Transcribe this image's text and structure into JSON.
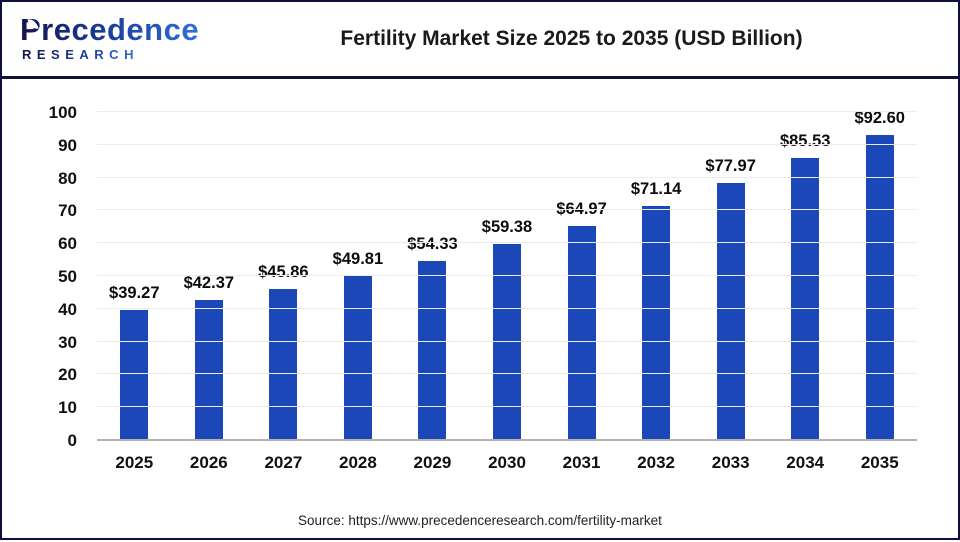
{
  "header": {
    "logo": {
      "name": "Precedence",
      "subname": "RESEARCH"
    },
    "title": "Fertility Market Size 2025 to 2035 (USD Billion)"
  },
  "chart_data": {
    "type": "bar",
    "title": "Fertility Market Size 2025 to 2035 (USD Billion)",
    "categories": [
      "2025",
      "2026",
      "2027",
      "2028",
      "2029",
      "2030",
      "2031",
      "2032",
      "2033",
      "2034",
      "2035"
    ],
    "values": [
      39.27,
      42.37,
      45.86,
      49.81,
      54.33,
      59.38,
      64.97,
      71.14,
      77.97,
      85.53,
      92.6
    ],
    "value_labels": [
      "$39.27",
      "$42.37",
      "$45.86",
      "$49.81",
      "$54.33",
      "$59.38",
      "$64.97",
      "$71.14",
      "$77.97",
      "$85.53",
      "$92.60"
    ],
    "unit": "USD Billion",
    "ylim": [
      0,
      100
    ],
    "ytick_step": 10,
    "grid": true,
    "legend_position": "none",
    "bar_color": "#1B47B8"
  },
  "footer": {
    "source": "Source: https://www.precedenceresearch.com/fertility-market"
  },
  "colors": {
    "bar": "#1B47B8",
    "border": "#10103C",
    "grid": "#ebebeb",
    "baseline": "#b3b3b3",
    "title_text": "#1a1a1a"
  }
}
